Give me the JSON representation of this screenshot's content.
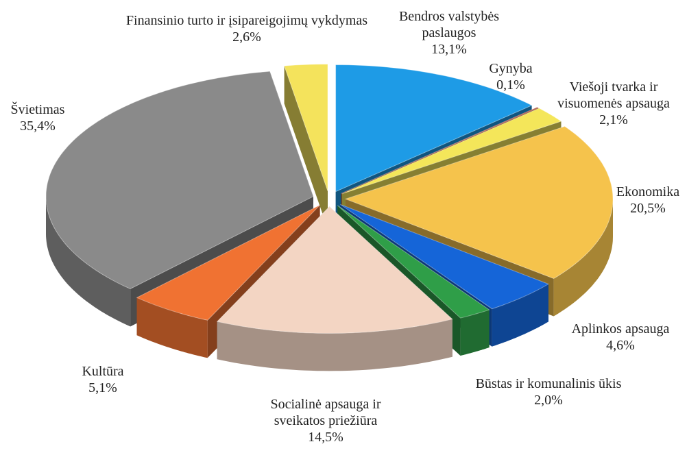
{
  "chart_data": {
    "type": "pie",
    "categories": [
      "Bendros valstybės paslaugos",
      "Gynyba",
      "Viešoji tvarka ir visuomenės apsauga",
      "Ekonomika",
      "Aplinkos apsauga",
      "Būstas ir komunalinis ūkis",
      "Socialinė apsauga ir sveikatos priežiūra",
      "Kultūra",
      "Švietimas",
      "Finansinio turto ir įsipareigojimų vykdymas"
    ],
    "values": [
      13.1,
      0.1,
      2.1,
      20.5,
      4.6,
      2.0,
      14.5,
      5.1,
      35.4,
      2.6
    ],
    "value_labels": [
      "13,1%",
      "0,1%",
      "2,1%",
      "20,5%",
      "4,6%",
      "2,0%",
      "14,5%",
      "5,1%",
      "35,4%",
      "2,6%"
    ],
    "colors": [
      "#1e9be6",
      "#b5452c",
      "#f4e65a",
      "#f5c34c",
      "#1565d8",
      "#2f9e48",
      "#f3d5c3",
      "#f07232",
      "#8a8a8a",
      "#f4e35c"
    ]
  }
}
